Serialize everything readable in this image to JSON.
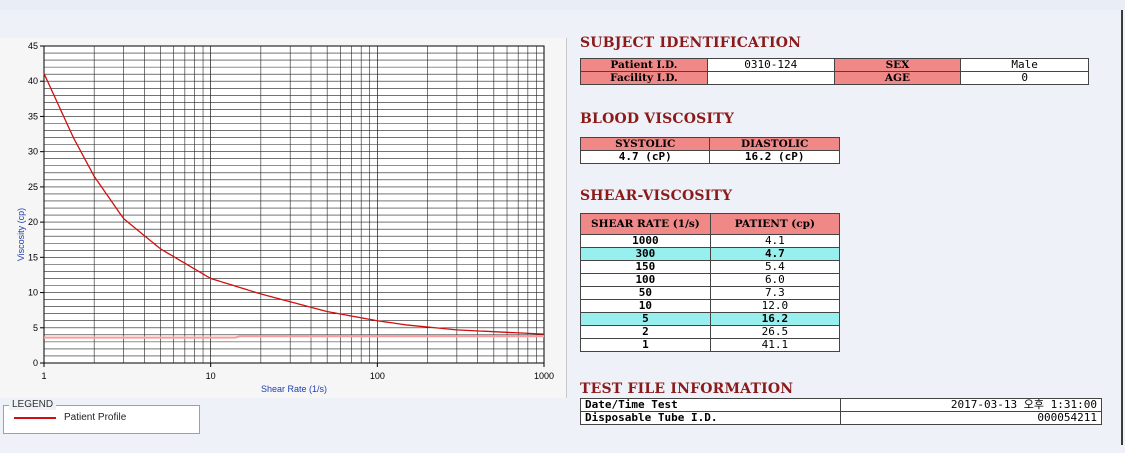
{
  "chart_data": {
    "type": "line",
    "xscale": "log",
    "xlim": [
      1,
      1000
    ],
    "ylim": [
      0,
      45
    ],
    "grid": true,
    "xlabel": "Shear Rate (1/s)",
    "ylabel": "Viscosity (cp)",
    "x_ticks": [
      "1",
      "10",
      "100",
      "1000"
    ],
    "y_ticks": [
      "0",
      "5",
      "10",
      "15",
      "20",
      "25",
      "30",
      "35",
      "40",
      "45"
    ],
    "series": [
      {
        "name": "Patient Profile",
        "color": "#d01010",
        "x": [
          1,
          1.5,
          2,
          3,
          5,
          10,
          20,
          50,
          100,
          150,
          300,
          1000
        ],
        "y": [
          41.1,
          32.0,
          26.5,
          20.5,
          16.2,
          12.0,
          9.8,
          7.3,
          6.0,
          5.4,
          4.7,
          4.1
        ]
      },
      {
        "name": "",
        "color": "#ff9a9a",
        "x": [
          1,
          14,
          15,
          1000
        ],
        "y": [
          3.6,
          3.6,
          3.8,
          3.8
        ]
      }
    ]
  },
  "legend": {
    "title": "LEGEND",
    "items": [
      "Patient Profile"
    ]
  },
  "subject": {
    "title": "SUBJECT IDENTIFICATION",
    "patient_id_label": "Patient I.D.",
    "patient_id": "0310-124",
    "sex_label": "SEX",
    "sex": "Male",
    "facility_label": "Facility I.D.",
    "facility": "",
    "age_label": "AGE",
    "age": "0"
  },
  "blood": {
    "title": "BLOOD VISCOSITY",
    "systolic_label": "SYSTOLIC",
    "diastolic_label": "DIASTOLIC",
    "systolic": "4.7 (cP)",
    "diastolic": "16.2 (cP)"
  },
  "shear": {
    "title": "SHEAR-VISCOSITY",
    "col1": "SHEAR RATE (1/s)",
    "col2": "PATIENT (cp)",
    "rows": [
      {
        "rate": "1000",
        "value": "4.1",
        "highlight": false
      },
      {
        "rate": "300",
        "value": "4.7",
        "highlight": true
      },
      {
        "rate": "150",
        "value": "5.4",
        "highlight": false
      },
      {
        "rate": "100",
        "value": "6.0",
        "highlight": false
      },
      {
        "rate": "50",
        "value": "7.3",
        "highlight": false
      },
      {
        "rate": "10",
        "value": "12.0",
        "highlight": false
      },
      {
        "rate": "5",
        "value": "16.2",
        "highlight": true
      },
      {
        "rate": "2",
        "value": "26.5",
        "highlight": false
      },
      {
        "rate": "1",
        "value": "41.1",
        "highlight": false
      }
    ],
    "highlight_color": "#98f0ee"
  },
  "testfile": {
    "title": "TEST FILE INFORMATION",
    "datetime_label": "Date/Time Test",
    "datetime": "2017-03-13  오후 1:31:00",
    "tube_label": "Disposable Tube I.D.",
    "tube": "000054211"
  },
  "colors": {
    "header": "#f08888",
    "title": "#8b1a1a",
    "curve": "#d01010"
  }
}
